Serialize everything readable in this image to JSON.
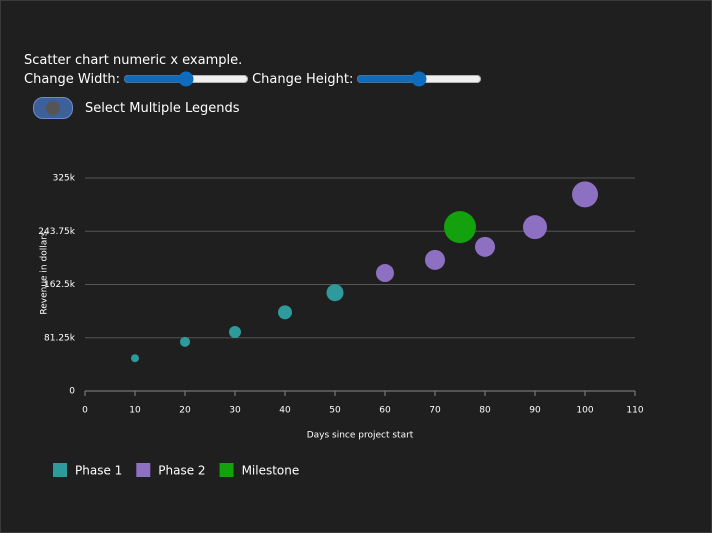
{
  "description": "Scatter chart numeric x example.",
  "controls": {
    "width_label": "Change Width:",
    "height_label": "Change Height:",
    "toggle_label": "Select Multiple Legends"
  },
  "chart_data": {
    "type": "scatter",
    "x_label": "Days since project start",
    "y_label": "Revenue in dollars",
    "xlim": [
      0,
      110
    ],
    "xticks": [
      0,
      10,
      20,
      30,
      40,
      50,
      60,
      70,
      80,
      90,
      100,
      110
    ],
    "ylim": [
      0,
      325000
    ],
    "yticks": [
      {
        "value": 0,
        "label": "0"
      },
      {
        "value": 81250,
        "label": "81.25k"
      },
      {
        "value": 162500,
        "label": "162.5k"
      },
      {
        "value": 243750,
        "label": "243.75k"
      },
      {
        "value": 325000,
        "label": "325k"
      }
    ],
    "grid": true,
    "legend": "bottom-left",
    "series": [
      {
        "name": "Phase 1",
        "color": "#2e9a9c",
        "x": [
          10,
          20,
          30,
          40,
          50
        ],
        "values": [
          50000,
          75000,
          90000,
          120000,
          150000
        ],
        "sizes": [
          4,
          5,
          6,
          7,
          8.5
        ]
      },
      {
        "name": "Phase 2",
        "color": "#8e70c2",
        "x": [
          60,
          70,
          80,
          90,
          100
        ],
        "values": [
          180000,
          200000,
          220000,
          250000,
          300000
        ],
        "sizes": [
          9,
          10,
          10,
          12,
          13
        ]
      },
      {
        "name": "Milestone",
        "color": "#13a10e",
        "x": [
          75
        ],
        "values": [
          250000
        ],
        "sizes": [
          16
        ]
      }
    ]
  }
}
